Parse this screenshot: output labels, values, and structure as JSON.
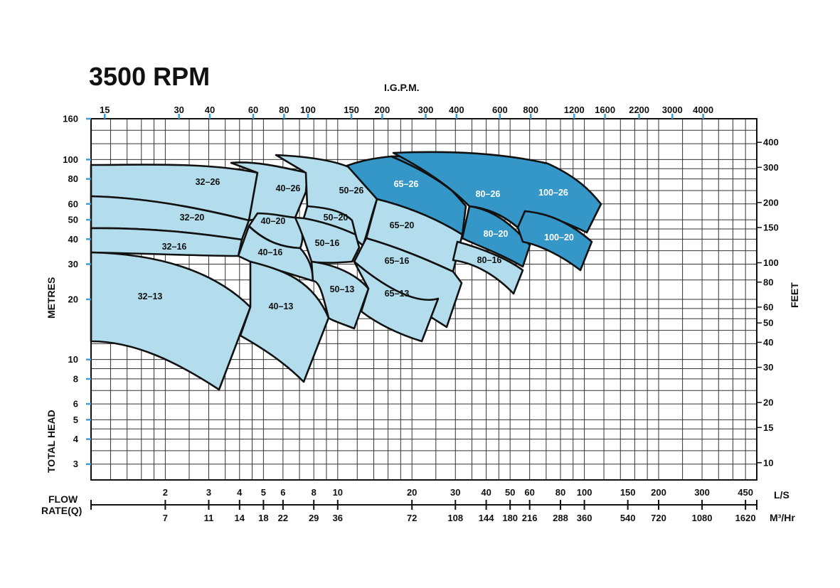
{
  "chart_data": {
    "type": "area",
    "title": "3500 RPM",
    "top_axis": {
      "label": "I.G.P.M.",
      "ticks": [
        "15",
        "30",
        "40",
        "60",
        "80",
        "100",
        "150",
        "200",
        "300",
        "400",
        "600",
        "800",
        "1200",
        "1600",
        "2200",
        "3000",
        "4000"
      ]
    },
    "left_axis": {
      "label_upper": "METRES",
      "label_lower": "TOTAL HEAD",
      "scale": "log",
      "ylim": [
        2.5,
        160
      ],
      "ticks": [
        160,
        100,
        80,
        60,
        50,
        40,
        30,
        20,
        10,
        8,
        6,
        5,
        4,
        3
      ]
    },
    "right_axis": {
      "label": "FEET",
      "ticks": [
        400,
        300,
        200,
        150,
        100,
        80,
        60,
        50,
        40,
        30,
        20,
        15,
        10
      ]
    },
    "bottom_axis": {
      "label": "FLOW RATE(Q)",
      "scale": "log",
      "xlim": [
        1.0,
        500
      ],
      "ls_unit": "L/S",
      "m3_unit": "M³/Hr",
      "ls_ticks": [
        2,
        3,
        4,
        5,
        6,
        8,
        10,
        20,
        30,
        40,
        50,
        60,
        80,
        100,
        150,
        200,
        300,
        450
      ],
      "m3_ticks": [
        7,
        11,
        14,
        18,
        22,
        29,
        36,
        72,
        108,
        144,
        180,
        216,
        288,
        360,
        540,
        720,
        1080,
        1620
      ]
    },
    "series": [
      {
        "name": "32-13",
        "q_range_ls": [
          1.0,
          6.0
        ],
        "head_range_m": [
          7,
          33
        ]
      },
      {
        "name": "32-16",
        "q_range_ls": [
          1.0,
          7.0
        ],
        "head_range_m": [
          17,
          45
        ]
      },
      {
        "name": "32-20",
        "q_range_ls": [
          1.0,
          8.0
        ],
        "head_range_m": [
          25,
          67
        ]
      },
      {
        "name": "32-26",
        "q_range_ls": [
          1.0,
          10.0
        ],
        "head_range_m": [
          37,
          92
        ]
      },
      {
        "name": "40-13",
        "q_range_ls": [
          6.0,
          14.0
        ],
        "head_range_m": [
          7.5,
          30
        ]
      },
      {
        "name": "40-16",
        "q_range_ls": [
          8.0,
          14.0
        ],
        "head_range_m": [
          20,
          47
        ]
      },
      {
        "name": "40-20",
        "q_range_ls": [
          9.0,
          16.0
        ],
        "head_range_m": [
          30,
          55
        ]
      },
      {
        "name": "40-26",
        "q_range_ls": [
          8.0,
          16.0
        ],
        "head_range_m": [
          50,
          95
        ]
      },
      {
        "name": "50-13",
        "q_range_ls": [
          13.0,
          22.0
        ],
        "head_range_m": [
          15,
          30
        ]
      },
      {
        "name": "50-16",
        "q_range_ls": [
          12.0,
          23.0
        ],
        "head_range_m": [
          22,
          52
        ]
      },
      {
        "name": "50-20",
        "q_range_ls": [
          15.0,
          25.0
        ],
        "head_range_m": [
          38,
          57
        ]
      },
      {
        "name": "50-26",
        "q_range_ls": [
          11.0,
          28.0
        ],
        "head_range_m": [
          45,
          102
        ]
      },
      {
        "name": "65-13",
        "q_range_ls": [
          21.0,
          42.0
        ],
        "head_range_m": [
          13,
          30
        ]
      },
      {
        "name": "65-16",
        "q_range_ls": [
          24.0,
          58.0
        ],
        "head_range_m": [
          15,
          45
        ]
      },
      {
        "name": "65-20",
        "q_range_ls": [
          26.0,
          50.0
        ],
        "head_range_m": [
          29,
          65
        ]
      },
      {
        "name": "65-26",
        "q_range_ls": [
          22.0,
          55.0
        ],
        "head_range_m": [
          45,
          100
        ]
      },
      {
        "name": "80-16",
        "q_range_ls": [
          55.0,
          75.0
        ],
        "head_range_m": [
          22,
          35
        ]
      },
      {
        "name": "80-20",
        "q_range_ls": [
          55.0,
          80.0
        ],
        "head_range_m": [
          30,
          58
        ]
      },
      {
        "name": "80-26",
        "q_range_ls": [
          30.0,
          90.0
        ],
        "head_range_m": [
          45,
          105
        ]
      },
      {
        "name": "100-20",
        "q_range_ls": [
          70.0,
          110.0
        ],
        "head_range_m": [
          30,
          58
        ]
      },
      {
        "name": "100-26",
        "q_range_ls": [
          30.0,
          120.0
        ],
        "head_range_m": [
          45,
          105
        ]
      }
    ],
    "colors": {
      "light_region": "#b3ddec",
      "dark_region": "#3596c8",
      "grid": "#333333",
      "tick_marker": "#3aa0d6"
    },
    "grid": true
  }
}
